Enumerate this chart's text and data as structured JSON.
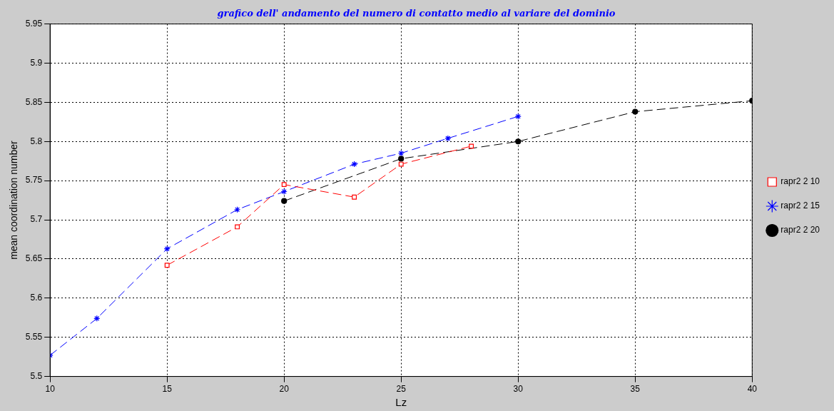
{
  "chart_data": {
    "type": "line",
    "title": "grafico dell' andamento del numero di contatto medio al variare del dominio",
    "xlabel": "Lz",
    "ylabel": "mean coordination number",
    "xlim": [
      10,
      40
    ],
    "xticks": [
      10,
      15,
      20,
      25,
      30,
      35,
      40
    ],
    "ylim": [
      5.5,
      5.95
    ],
    "yticks": [
      5.5,
      5.55,
      5.6,
      5.65,
      5.7,
      5.75,
      5.8,
      5.85,
      5.9,
      5.95
    ],
    "grid": true,
    "legend": "right",
    "line_style": "dashed",
    "series": [
      {
        "name": "rapr2 2 10",
        "color": "#ff0000",
        "marker": "square",
        "x": [
          15,
          18,
          20,
          23,
          25,
          28
        ],
        "values": [
          5.642,
          5.691,
          5.745,
          5.729,
          5.771,
          5.794
        ]
      },
      {
        "name": "rapr2 2 15",
        "color": "#0000ff",
        "marker": "cross",
        "x": [
          10,
          12,
          15,
          18,
          20,
          23,
          25,
          27,
          30
        ],
        "values": [
          5.527,
          5.574,
          5.663,
          5.713,
          5.736,
          5.771,
          5.785,
          5.804,
          5.832
        ]
      },
      {
        "name": "rapr2 2 20",
        "color": "#000000",
        "marker": "circle",
        "x": [
          20,
          25,
          30,
          35,
          40
        ],
        "values": [
          5.724,
          5.778,
          5.8,
          5.838,
          5.852
        ]
      }
    ]
  }
}
